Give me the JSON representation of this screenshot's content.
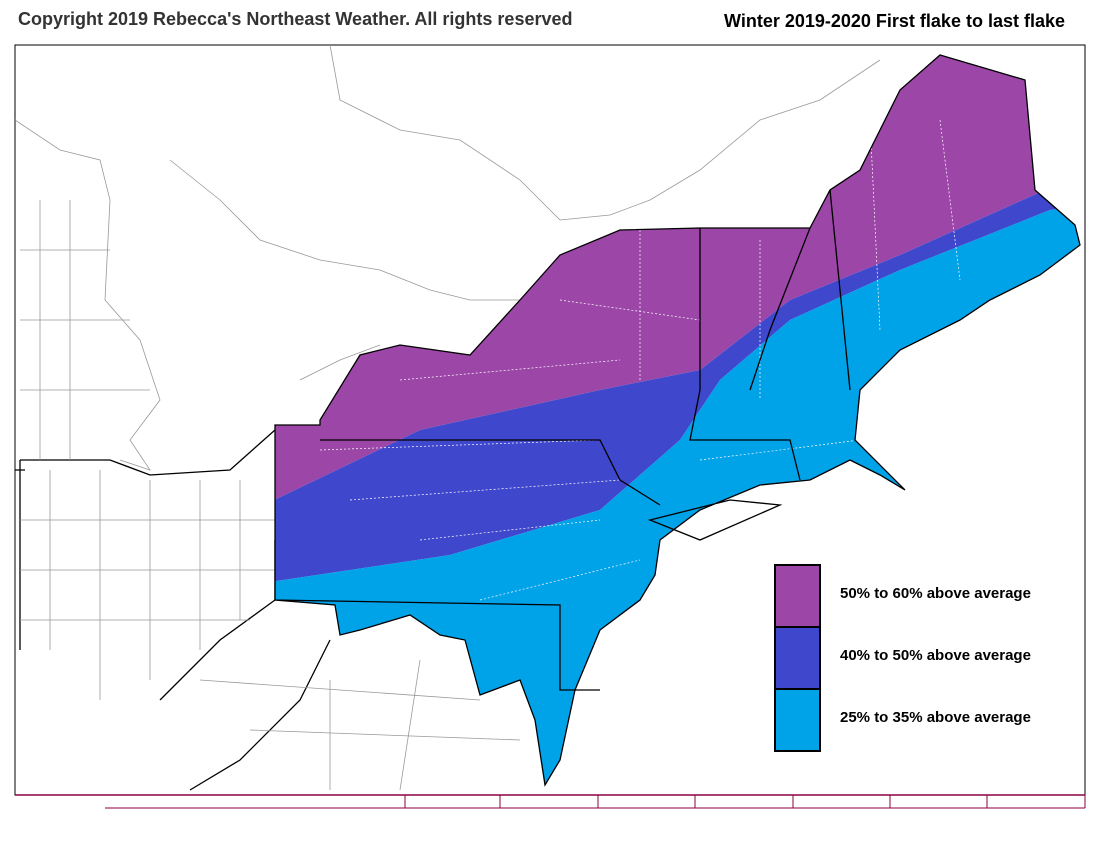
{
  "header": {
    "copyright": "Copyright 2019 Rebecca's Northeast Weather.  All rights reserved",
    "title": "Winter 2019-2020 First flake to last flake"
  },
  "legend": {
    "items": [
      {
        "label": "50% to 60% above average",
        "color": "#9c47a8"
      },
      {
        "label": "40% to 50% above average",
        "color": "#3f48cc"
      },
      {
        "label": "25% to 35% above average",
        "color": "#00a2e8"
      }
    ]
  }
}
